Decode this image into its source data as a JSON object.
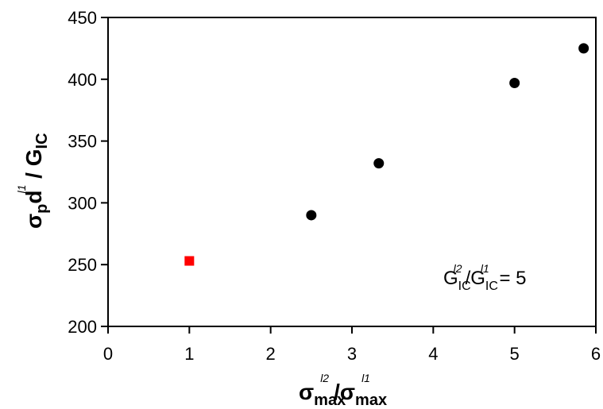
{
  "chart_data": {
    "type": "scatter",
    "title": "",
    "xlim": [
      0,
      6
    ],
    "ylim": [
      200,
      450
    ],
    "x_ticks": [
      "0",
      "1",
      "2",
      "3",
      "4",
      "5",
      "6"
    ],
    "y_ticks": [
      "200",
      "250",
      "300",
      "350",
      "400",
      "450"
    ],
    "grid": false,
    "legend": "none",
    "xlabel": {
      "sigma": "σ",
      "sub": "max",
      "sup": "l2",
      "slash": "/",
      "sigma2": "σ",
      "sub2": "max",
      "sup2": "l1"
    },
    "ylabel": {
      "sigma": "σ",
      "sub_p": "p",
      "d": "d",
      "sup": "l1",
      "slash": " / ",
      "G": "G",
      "sub": "IC"
    },
    "annotation": {
      "G1": "G",
      "sub1": "IC",
      "sup1": "l2",
      "slash": "/",
      "G2": "G",
      "sub2": "IC",
      "sup2": "l1",
      "value": " = 5"
    },
    "series": [
      {
        "marker": "circle",
        "color": "#000000",
        "x": [
          2.5,
          3.33,
          5.0,
          5.85
        ],
        "y": [
          290,
          332,
          397,
          425
        ]
      },
      {
        "marker": "square",
        "color": "#ff0000",
        "x": [
          1.0
        ],
        "y": [
          253
        ]
      }
    ]
  }
}
